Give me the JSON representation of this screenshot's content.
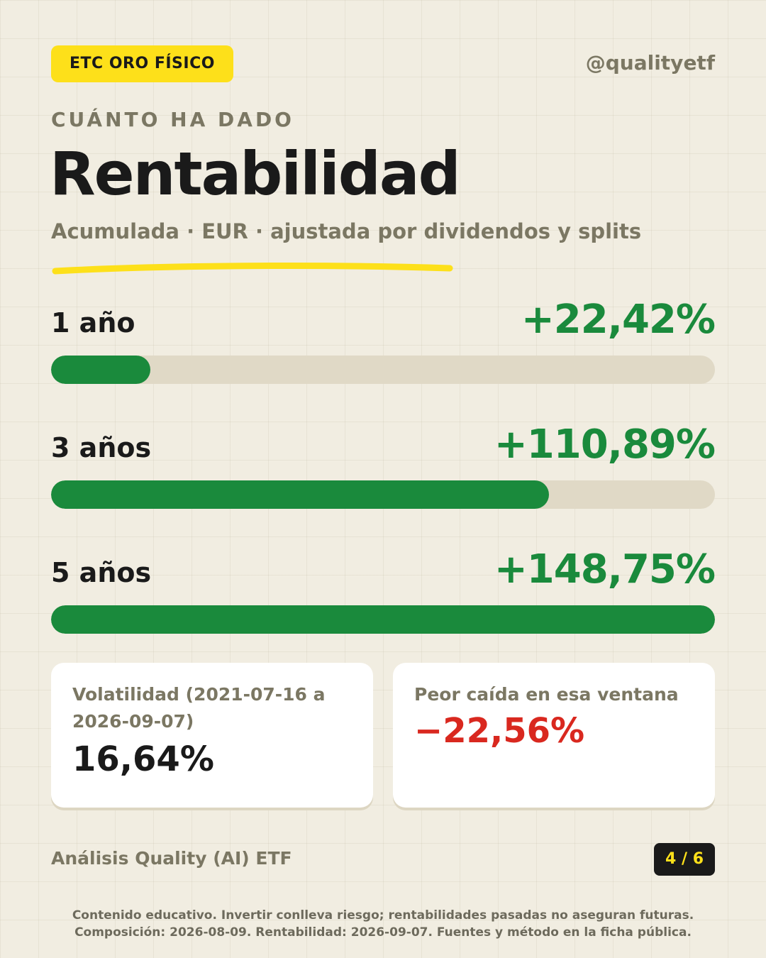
{
  "header": {
    "tag": "ETC ORO FÍSICO",
    "handle": "@qualityetf",
    "kicker": "CUÁNTO HA DADO",
    "title": "Rentabilidad",
    "subtitle": "Acumulada · EUR · ajustada por dividendos y splits"
  },
  "returns": [
    {
      "label": "1 año",
      "value": "+22,42%",
      "bar_fraction": 0.15
    },
    {
      "label": "3 años",
      "value": "+110,89%",
      "bar_fraction": 0.75
    },
    {
      "label": "5 años",
      "value": "+148,75%",
      "bar_fraction": 1.0
    }
  ],
  "cards": {
    "volatility": {
      "label": "Volatilidad (2021-07-16 a 2026-09-07)",
      "value": "16,64%"
    },
    "drawdown": {
      "label": "Peor caída en esa ventana",
      "value": "−22,56%"
    }
  },
  "footer": {
    "brand": "Análisis Quality (AI) ETF",
    "page": "4 / 6",
    "disclaimer_1": "Contenido educativo. Invertir conlleva riesgo; rentabilidades pasadas no aseguran futuras.",
    "disclaimer_2": "Composición: 2026-08-09. Rentabilidad: 2026-09-07. Fuentes y método en la ficha pública."
  },
  "colors": {
    "background": "#f1ede1",
    "accent_yellow": "#fde01a",
    "positive_green": "#1a8a3c",
    "negative_red": "#d9281f",
    "muted_text": "#7b7763",
    "track": "#e0d9c6"
  }
}
